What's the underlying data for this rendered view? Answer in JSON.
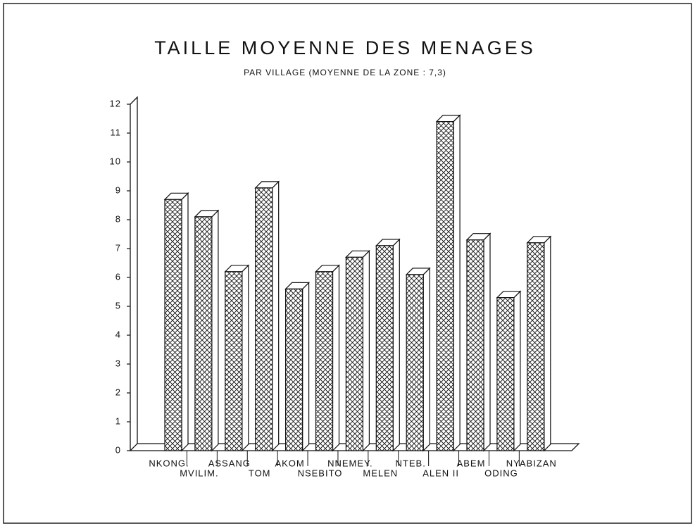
{
  "chart_data": {
    "type": "bar3d",
    "title": "TAILLE MOYENNE DES MENAGES",
    "subtitle": "PAR VILLAGE (MOYENNE DE LA ZONE : 7,3)",
    "categories": [
      "NKONG.",
      "MVILIM.",
      "ASSANG",
      "TOM",
      "AKOM",
      "NSEBITO",
      "NNEMEY.",
      "MELEN",
      "NTEB.",
      "ALEN II",
      "ABEM",
      "ODING",
      "NYABIZAN"
    ],
    "values": [
      8.7,
      8.1,
      6.2,
      9.1,
      5.6,
      6.2,
      6.7,
      7.1,
      6.1,
      11.4,
      7.3,
      5.3,
      7.2
    ],
    "color": "#111111",
    "ylim": [
      0,
      12
    ],
    "yticks": [
      0,
      1,
      2,
      3,
      4,
      5,
      6,
      7,
      8,
      9,
      10,
      11,
      12
    ]
  }
}
